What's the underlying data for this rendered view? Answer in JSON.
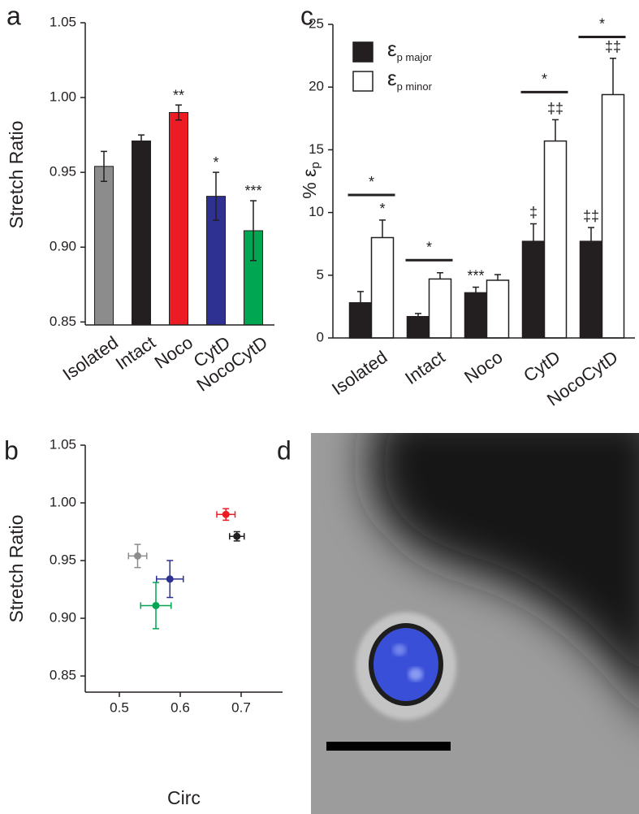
{
  "chart_data": [
    {
      "type": "bar",
      "panel": "a",
      "ylabel": "Stretch Ratio",
      "categories": [
        "Isolated",
        "Intact",
        "Noco",
        "CytD",
        "NocoCytD"
      ],
      "values": [
        0.954,
        0.971,
        0.99,
        0.934,
        0.911
      ],
      "errors": [
        0.01,
        0.004,
        0.005,
        0.016,
        0.02
      ],
      "colors": [
        "#8c8c8c",
        "#231f20",
        "#ed1c24",
        "#2e3192",
        "#00a651"
      ],
      "annotations": [
        null,
        null,
        "**",
        "*",
        "***"
      ],
      "ylim": [
        0.848,
        1.05
      ],
      "yticks": [
        0.85,
        {
          "value": 0.9,
          "label": "0.90"
        },
        0.95,
        {
          "value": 1,
          "label": "1.00"
        },
        1.05
      ]
    },
    {
      "type": "grouped-bar",
      "panel": "c",
      "ylabel": "% ε",
      "ylabel_sub": "p",
      "categories": [
        "Isolated",
        "Intact",
        "Noco",
        "CytD",
        "NocoCytD"
      ],
      "series": [
        {
          "name": "ε",
          "name_sub": "p major",
          "color": "#231f20",
          "values": [
            2.8,
            1.7,
            3.6,
            7.7,
            7.7
          ],
          "errors": [
            0.9,
            0.25,
            0.45,
            1.4,
            1.1
          ],
          "annotations": [
            null,
            null,
            "***",
            "‡",
            "‡‡"
          ]
        },
        {
          "name": "ε",
          "name_sub": "p minor",
          "color": "#ffffff",
          "values": [
            8.0,
            4.7,
            4.6,
            15.7,
            19.4
          ],
          "errors": [
            1.4,
            0.5,
            0.45,
            1.7,
            2.9
          ],
          "annotations": [
            "*",
            null,
            null,
            "‡‡",
            "‡‡"
          ]
        }
      ],
      "brackets": {
        "labels": [
          "*",
          "*",
          null,
          "*",
          "*"
        ],
        "values": [
          11.4,
          6.2,
          null,
          19.6,
          24.0
        ]
      },
      "legend": "upper left",
      "ylim": [
        0,
        25
      ],
      "yticks": [
        0,
        5,
        10,
        15,
        20,
        25
      ]
    },
    {
      "type": "scatter",
      "panel": "b",
      "xlabel": "Circ",
      "ylabel": "Stretch Ratio",
      "x": [
        0.53,
        0.693,
        0.675,
        0.583,
        0.56
      ],
      "y": [
        0.954,
        0.971,
        0.99,
        0.934,
        0.911
      ],
      "xerr": [
        0.015,
        0.012,
        0.015,
        0.022,
        0.025
      ],
      "yerr": [
        0.01,
        0.004,
        0.005,
        0.016,
        0.02
      ],
      "colors": [
        "#8c8c8c",
        "#231f20",
        "#ed1c24",
        "#2e3192",
        "#00a651"
      ],
      "xlim": [
        0.444,
        0.768
      ],
      "xticks": [
        0.5,
        0.6,
        0.7
      ],
      "ylim": [
        0.836,
        1.05
      ],
      "yticks": [
        0.85,
        {
          "value": 0.9,
          "label": "0.90"
        },
        0.95,
        {
          "value": 1,
          "label": "1.00"
        },
        1.05
      ]
    },
    {
      "type": "image",
      "panel": "d"
    }
  ]
}
